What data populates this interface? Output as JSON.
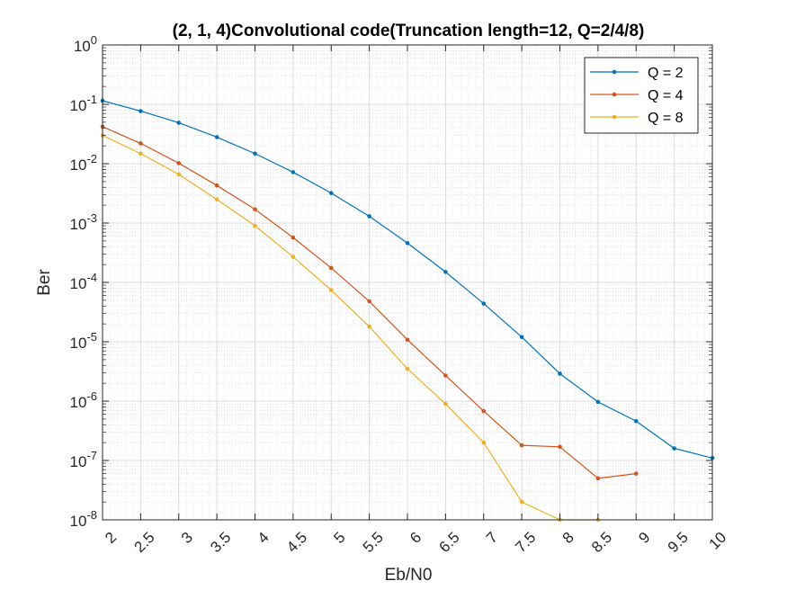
{
  "chart_data": {
    "type": "line",
    "title": "(2, 1, 4)Convolutional code(Truncation length=12, Q=2/4/8)",
    "xlabel": "Eb/N0",
    "ylabel": "Ber",
    "xlim": [
      2,
      10
    ],
    "ylim": [
      1e-08,
      1
    ],
    "yscale": "log",
    "grid": true,
    "minor_grid": true,
    "legend_position": "top-right",
    "x_ticks": [
      "2",
      "2.5",
      "3",
      "3.5",
      "4",
      "4.5",
      "5",
      "5.5",
      "6",
      "6.5",
      "7",
      "7.5",
      "8",
      "8.5",
      "9",
      "9.5",
      "10"
    ],
    "y_ticks": [
      {
        "base": "10",
        "exp": "0"
      },
      {
        "base": "10",
        "exp": "-1"
      },
      {
        "base": "10",
        "exp": "-2"
      },
      {
        "base": "10",
        "exp": "-3"
      },
      {
        "base": "10",
        "exp": "-4"
      },
      {
        "base": "10",
        "exp": "-5"
      },
      {
        "base": "10",
        "exp": "-6"
      },
      {
        "base": "10",
        "exp": "-7"
      },
      {
        "base": "10",
        "exp": "-8"
      }
    ],
    "series": [
      {
        "name": "Q = 2",
        "color": "#0072BD",
        "x": [
          2,
          2.5,
          3,
          3.5,
          4,
          4.5,
          5,
          5.5,
          6,
          6.5,
          7,
          7.5,
          8,
          8.5,
          9,
          9.5,
          10
        ],
        "y": [
          0.115,
          0.077,
          0.049,
          0.028,
          0.0148,
          0.0072,
          0.0032,
          0.0013,
          0.00046,
          0.00015,
          4.4e-05,
          1.2e-05,
          2.9e-06,
          9.7e-07,
          4.6e-07,
          1.6e-07,
          1.1e-07
        ]
      },
      {
        "name": "Q = 4",
        "color": "#D95319",
        "x": [
          2,
          2.5,
          3,
          3.5,
          4,
          4.5,
          5,
          5.5,
          6,
          6.5,
          7,
          7.5,
          8,
          8.5,
          9
        ],
        "y": [
          0.042,
          0.022,
          0.0102,
          0.0043,
          0.0017,
          0.00057,
          0.000175,
          4.8e-05,
          1.08e-05,
          2.7e-06,
          6.8e-07,
          1.8e-07,
          1.7e-07,
          5e-08,
          6e-08
        ]
      },
      {
        "name": "Q = 8",
        "color": "#EDB120",
        "x": [
          2,
          2.5,
          3,
          3.5,
          4,
          4.5,
          5,
          5.5,
          6,
          6.5,
          7,
          7.5,
          8,
          8.5
        ],
        "y": [
          0.03,
          0.0148,
          0.0066,
          0.0025,
          0.0009,
          0.00027,
          7.4e-05,
          1.8e-05,
          3.5e-06,
          9e-07,
          2e-07,
          2e-08,
          1e-08,
          1e-08
        ]
      }
    ]
  }
}
